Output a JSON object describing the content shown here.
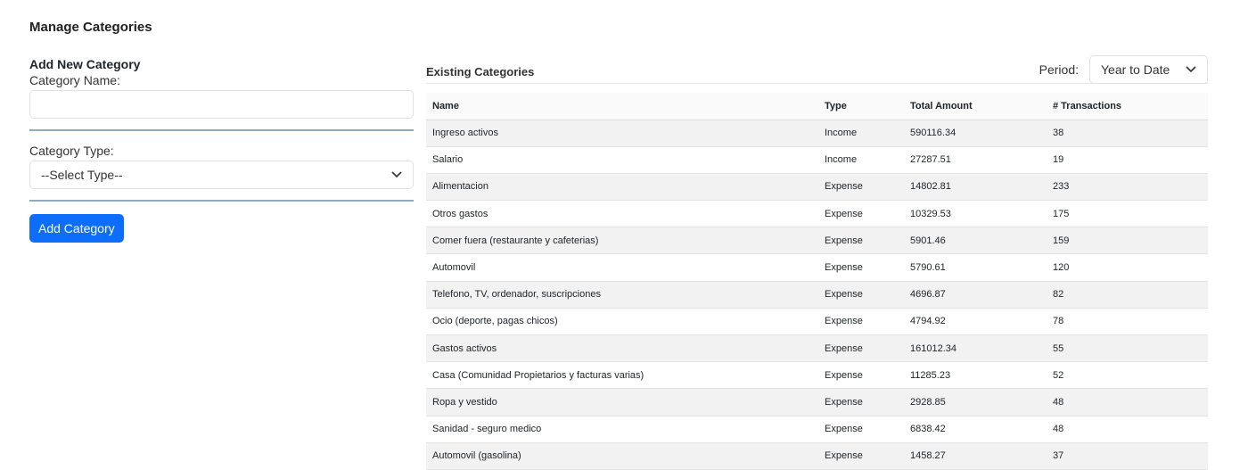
{
  "page": {
    "title": "Manage Categories"
  },
  "form": {
    "heading": "Add New Category",
    "name_label": "Category Name:",
    "name_value": "",
    "type_label": "Category Type:",
    "type_selected": "--Select Type--",
    "submit_label": "Add Category"
  },
  "list": {
    "heading": "Existing Categories",
    "period_label": "Period:",
    "period_selected": "Year to Date",
    "columns": [
      "Name",
      "Type",
      "Total Amount",
      "# Transactions"
    ],
    "rows": [
      [
        "Ingreso activos",
        "Income",
        "590116.34",
        "38"
      ],
      [
        "Salario",
        "Income",
        "27287.51",
        "19"
      ],
      [
        "Alimentacion",
        "Expense",
        "14802.81",
        "233"
      ],
      [
        "Otros gastos",
        "Expense",
        "10329.53",
        "175"
      ],
      [
        "Comer fuera (restaurante y cafeterias)",
        "Expense",
        "5901.46",
        "159"
      ],
      [
        "Automovil",
        "Expense",
        "5790.61",
        "120"
      ],
      [
        "Telefono, TV, ordenador, suscripciones",
        "Expense",
        "4696.87",
        "82"
      ],
      [
        "Ocio (deporte, pagas chicos)",
        "Expense",
        "4794.92",
        "78"
      ],
      [
        "Gastos activos",
        "Expense",
        "161012.34",
        "55"
      ],
      [
        "Casa (Comunidad Propietarios y facturas varias)",
        "Expense",
        "11285.23",
        "52"
      ],
      [
        "Ropa y vestido",
        "Expense",
        "2928.85",
        "48"
      ],
      [
        "Sanidad - seguro medico",
        "Expense",
        "6838.42",
        "48"
      ],
      [
        "Automovil (gasolina)",
        "Expense",
        "1458.27",
        "37"
      ]
    ]
  },
  "colors": {
    "primary": "#0d6efd"
  }
}
